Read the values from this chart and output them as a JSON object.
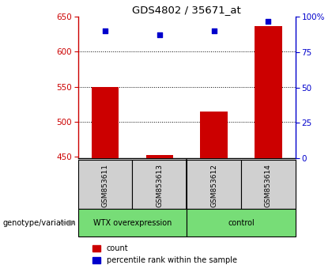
{
  "title": "GDS4802 / 35671_at",
  "samples": [
    "GSM853611",
    "GSM853613",
    "GSM853612",
    "GSM853614"
  ],
  "bar_values": [
    550,
    452,
    515,
    637
  ],
  "bar_base": 448,
  "pct_values": [
    90,
    87,
    90,
    97
  ],
  "bar_color": "#cc0000",
  "dot_color": "#0000cc",
  "ylim_left": [
    448,
    650
  ],
  "ylim_right": [
    0,
    100
  ],
  "yticks_left": [
    450,
    500,
    550,
    600,
    650
  ],
  "yticks_right": [
    0,
    25,
    50,
    75,
    100
  ],
  "ytick_labels_right": [
    "0",
    "25",
    "50",
    "75",
    "100%"
  ],
  "group_label": "genotype/variation",
  "legend_count": "count",
  "legend_pct": "percentile rank within the sample",
  "background_color": "#ffffff",
  "plot_bg": "#ffffff",
  "left_axis_color": "#cc0000",
  "right_axis_color": "#0000cc",
  "gray_box_color": "#d0d0d0",
  "green_box_color": "#77dd77",
  "group1_label": "WTX overexpression",
  "group2_label": "control"
}
